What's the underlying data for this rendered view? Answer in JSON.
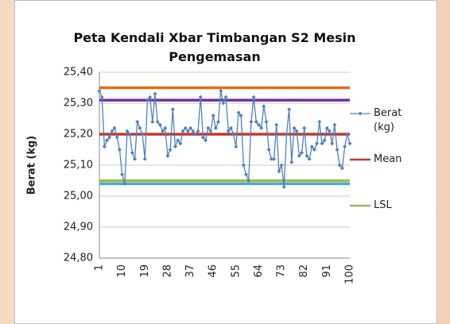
{
  "chart_data": {
    "type": "line",
    "title": "Peta Kendali Xbar Timbangan S2 Mesin Pengemasan",
    "ylabel": "Berat (kg)",
    "categories": [
      "1",
      null,
      null,
      null,
      null,
      null,
      null,
      null,
      null,
      "10",
      null,
      null,
      null,
      null,
      null,
      null,
      null,
      null,
      "19",
      null,
      null,
      null,
      null,
      null,
      null,
      null,
      null,
      "28",
      null,
      null,
      null,
      null,
      null,
      null,
      null,
      null,
      "37",
      null,
      null,
      null,
      null,
      null,
      null,
      null,
      null,
      "46",
      null,
      null,
      null,
      null,
      null,
      null,
      null,
      null,
      "55",
      null,
      null,
      null,
      null,
      null,
      null,
      null,
      null,
      "64",
      null,
      null,
      null,
      null,
      null,
      null,
      null,
      null,
      "73",
      null,
      null,
      null,
      null,
      null,
      null,
      null,
      null,
      "82",
      null,
      null,
      null,
      null,
      null,
      null,
      null,
      null,
      "91",
      null,
      null,
      null,
      null,
      null,
      null,
      null,
      null,
      "100"
    ],
    "series": [
      {
        "name": "Berat (kg)",
        "color": "#4f7fbf",
        "values": [
          25.34,
          25.32,
          25.16,
          25.18,
          25.19,
          25.21,
          25.22,
          25.19,
          25.15,
          25.07,
          25.04,
          25.21,
          25.2,
          25.14,
          25.12,
          25.24,
          25.22,
          25.2,
          25.12,
          25.31,
          25.32,
          25.24,
          25.33,
          25.24,
          25.23,
          25.21,
          25.22,
          25.13,
          25.15,
          25.28,
          25.16,
          25.18,
          25.17,
          25.21,
          25.22,
          25.21,
          25.22,
          25.21,
          25.2,
          25.21,
          25.32,
          25.19,
          25.18,
          25.22,
          25.21,
          25.26,
          25.22,
          25.24,
          25.34,
          25.3,
          25.32,
          25.21,
          25.22,
          25.2,
          25.16,
          25.27,
          25.26,
          25.1,
          25.07,
          25.05,
          25.24,
          25.32,
          25.24,
          25.23,
          25.22,
          25.29,
          25.24,
          25.15,
          25.12,
          25.12,
          25.23,
          25.08,
          25.1,
          25.03,
          25.2,
          25.28,
          25.11,
          25.22,
          25.21,
          25.13,
          25.14,
          25.22,
          25.13,
          25.12,
          25.16,
          25.15,
          25.17,
          25.24,
          25.17,
          25.18,
          25.22,
          25.21,
          25.17,
          25.23,
          25.15,
          25.1,
          25.09,
          25.16,
          25.2,
          25.17
        ]
      }
    ],
    "reference_lines": [
      {
        "color": "#e46c0a",
        "value": 25.35
      },
      {
        "color": "#7030a0",
        "value": 25.31
      },
      {
        "name": "Mean",
        "color": "#c0392b",
        "value": 25.2
      },
      {
        "name": "LSL",
        "color": "#9bbb59",
        "value": 25.05
      },
      {
        "color": "#4bacc6",
        "value": 25.04
      }
    ],
    "ylim": [
      24.8,
      25.4
    ],
    "yticks": [
      {
        "value": 24.8,
        "label": "24,80"
      },
      {
        "value": 24.9,
        "label": "24,90"
      },
      {
        "value": 25.0,
        "label": "25,00"
      },
      {
        "value": 25.1,
        "label": "25,10"
      },
      {
        "value": 25.2,
        "label": "25,20"
      },
      {
        "value": 25.3,
        "label": "25,30"
      },
      {
        "value": 25.4,
        "label": "25,40"
      }
    ],
    "grid": true
  }
}
